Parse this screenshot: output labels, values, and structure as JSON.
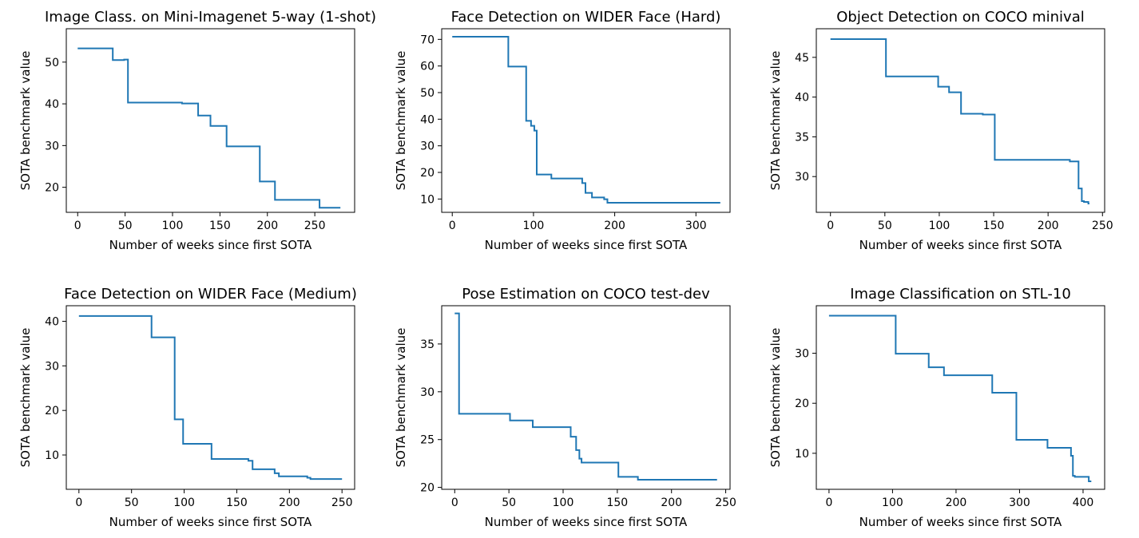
{
  "x_axis_label": "Number of weeks since first SOTA",
  "y_axis_label": "SOTA benchmark value",
  "line_color": "#1f77b4",
  "chart_data": [
    {
      "type": "line",
      "title": "Image Class. on Mini-Imagenet 5-way (1-shot)",
      "xlabel": "Number of weeks since first SOTA",
      "ylabel": "SOTA benchmark value",
      "xlim": [
        -12,
        292
      ],
      "ylim": [
        14,
        58
      ],
      "xticks": [
        0,
        50,
        100,
        150,
        200,
        250
      ],
      "yticks": [
        20,
        30,
        40,
        50
      ],
      "grid": false,
      "x": [
        0,
        37,
        37,
        49,
        49,
        53,
        53,
        110,
        110,
        127,
        127,
        140,
        140,
        157,
        157,
        192,
        192,
        208,
        208,
        255,
        255,
        277
      ],
      "y": [
        53.3,
        53.3,
        50.5,
        50.5,
        50.6,
        50.6,
        40.3,
        40.3,
        40.1,
        40.1,
        37.2,
        37.2,
        34.7,
        34.7,
        29.8,
        29.8,
        21.4,
        21.4,
        17.0,
        17.0,
        15.1,
        15.1
      ]
    },
    {
      "type": "line",
      "title": "Face Detection on WIDER Face (Hard)",
      "xlabel": "Number of weeks since first SOTA",
      "ylabel": "SOTA benchmark value",
      "xlim": [
        -13,
        342
      ],
      "ylim": [
        5,
        74
      ],
      "xticks": [
        0,
        100,
        200,
        300
      ],
      "yticks": [
        10,
        20,
        30,
        40,
        50,
        60,
        70
      ],
      "grid": false,
      "x": [
        0,
        69,
        69,
        91,
        91,
        97,
        97,
        101,
        101,
        104,
        104,
        106,
        106,
        122,
        122,
        160,
        160,
        164,
        164,
        172,
        172,
        187,
        187,
        191,
        191,
        252,
        252,
        330
      ],
      "y": [
        71.0,
        71.0,
        59.8,
        59.8,
        39.4,
        39.4,
        37.5,
        37.5,
        35.7,
        35.7,
        19.2,
        19.2,
        19.2,
        19.2,
        17.7,
        17.7,
        16.0,
        16.0,
        12.3,
        12.3,
        10.6,
        10.6,
        9.9,
        9.9,
        8.6,
        8.6,
        8.6,
        8.6
      ]
    },
    {
      "type": "line",
      "title": "Object Detection on COCO minival",
      "xlabel": "Number of weeks since first SOTA",
      "ylabel": "SOTA benchmark value",
      "xlim": [
        -13,
        252
      ],
      "ylim": [
        25.5,
        48.6
      ],
      "xticks": [
        0,
        50,
        100,
        150,
        200,
        250
      ],
      "yticks": [
        30,
        35,
        40,
        45
      ],
      "grid": false,
      "x": [
        0,
        51,
        51,
        99,
        99,
        109,
        109,
        120,
        120,
        140,
        140,
        151,
        151,
        220,
        220,
        228,
        228,
        231,
        231,
        233,
        233,
        237,
        237,
        238
      ],
      "y": [
        47.3,
        47.3,
        42.6,
        42.6,
        41.3,
        41.3,
        40.6,
        40.6,
        37.9,
        37.9,
        37.8,
        37.8,
        32.1,
        32.1,
        31.9,
        31.9,
        28.5,
        28.5,
        26.9,
        26.9,
        26.8,
        26.8,
        26.6,
        26.6
      ]
    },
    {
      "type": "line",
      "title": "Face Detection on WIDER Face (Medium)",
      "xlabel": "Number of weeks since first SOTA",
      "ylabel": "SOTA benchmark value",
      "xlim": [
        -12,
        262
      ],
      "ylim": [
        2.3,
        43.5
      ],
      "xticks": [
        0,
        50,
        100,
        150,
        200,
        250
      ],
      "yticks": [
        10,
        20,
        30,
        40
      ],
      "grid": false,
      "x": [
        0,
        69,
        69,
        91,
        91,
        99,
        99,
        126,
        126,
        161,
        161,
        165,
        165,
        186,
        186,
        190,
        190,
        217,
        217,
        220,
        220,
        250
      ],
      "y": [
        41.2,
        41.2,
        36.4,
        36.4,
        18.0,
        18.0,
        12.5,
        12.5,
        9.1,
        9.1,
        8.7,
        8.7,
        6.8,
        6.8,
        5.9,
        5.9,
        5.2,
        5.2,
        4.9,
        4.9,
        4.6,
        4.6
      ]
    },
    {
      "type": "line",
      "title": "Pose Estimation on COCO test-dev",
      "xlabel": "Number of weeks since first SOTA",
      "ylabel": "SOTA benchmark value",
      "xlim": [
        -12,
        254
      ],
      "ylim": [
        19.8,
        39.0
      ],
      "xticks": [
        0,
        50,
        100,
        150,
        200,
        250
      ],
      "yticks": [
        20,
        25,
        30,
        35
      ],
      "grid": false,
      "x": [
        0,
        4,
        4,
        7,
        7,
        51,
        51,
        72,
        72,
        107,
        107,
        112,
        112,
        115,
        115,
        117,
        117,
        151,
        151,
        169,
        169,
        173,
        173,
        242
      ],
      "y": [
        38.2,
        38.2,
        27.7,
        27.7,
        27.7,
        27.7,
        27.0,
        27.0,
        26.3,
        26.3,
        25.3,
        25.3,
        23.9,
        23.9,
        23.0,
        23.0,
        22.6,
        22.6,
        21.1,
        21.1,
        20.8,
        20.8,
        20.8,
        20.8
      ]
    },
    {
      "type": "line",
      "title": "Image Classification on STL-10",
      "xlabel": "Number of weeks since first SOTA",
      "ylabel": "SOTA benchmark value",
      "xlim": [
        -20,
        434
      ],
      "ylim": [
        2.8,
        39.5
      ],
      "xticks": [
        0,
        100,
        200,
        300,
        400
      ],
      "yticks": [
        10,
        20,
        30
      ],
      "grid": false,
      "x": [
        0,
        105,
        105,
        157,
        157,
        181,
        181,
        257,
        257,
        295,
        295,
        344,
        344,
        381,
        381,
        384,
        384,
        387,
        387,
        409,
        409,
        413
      ],
      "y": [
        37.5,
        37.5,
        29.9,
        29.9,
        27.2,
        27.2,
        25.6,
        25.6,
        22.1,
        22.1,
        12.7,
        12.7,
        11.1,
        11.1,
        9.5,
        9.5,
        5.5,
        5.5,
        5.3,
        5.3,
        4.4,
        4.4
      ]
    }
  ]
}
